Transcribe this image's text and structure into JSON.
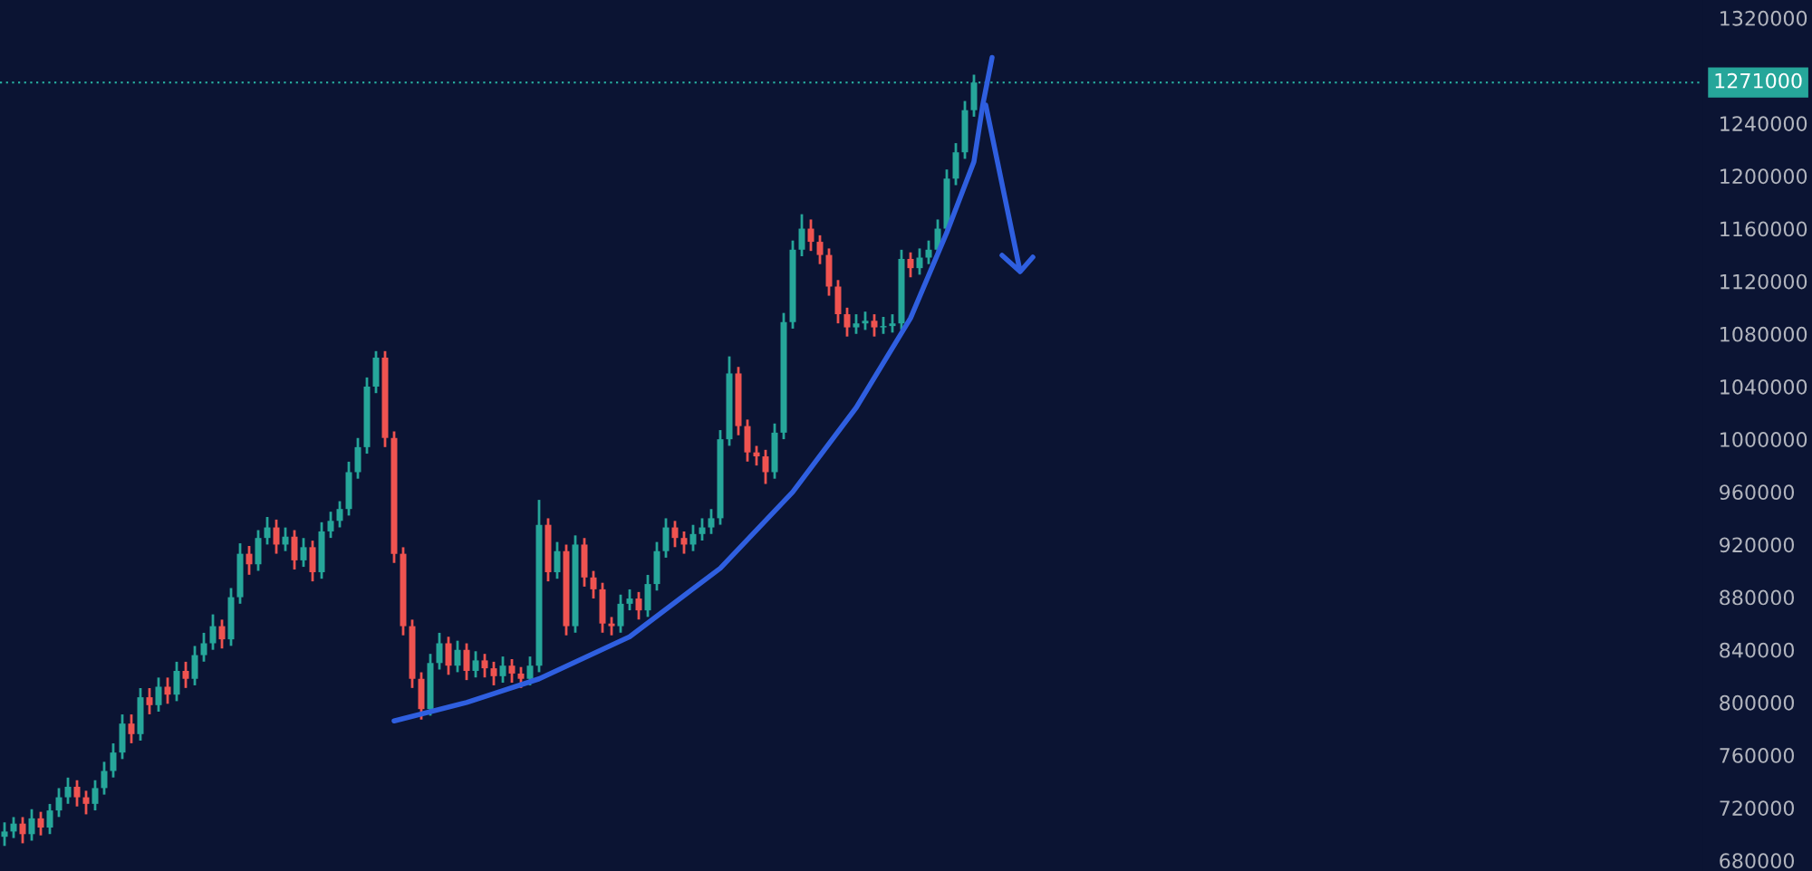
{
  "chart_data": {
    "type": "candlestick",
    "categories": [
      null,
      null,
      null,
      null,
      null,
      null,
      null,
      null,
      null,
      null,
      null,
      null,
      null,
      null,
      null,
      null,
      null,
      null,
      null,
      null,
      null,
      null,
      null,
      null,
      null,
      null,
      null,
      null,
      null,
      null,
      null,
      null,
      null,
      null,
      null,
      null,
      null,
      null,
      null,
      null,
      null,
      null,
      null,
      null,
      null,
      null,
      null,
      null,
      null,
      null,
      null,
      null,
      null,
      null,
      null,
      null,
      null,
      null,
      null,
      null,
      null,
      null,
      null,
      null,
      null,
      null,
      null,
      null,
      null,
      null,
      null,
      null,
      null,
      null,
      null,
      null,
      null,
      null,
      null,
      null,
      null,
      null,
      null,
      null,
      null,
      null,
      null,
      null,
      null,
      null,
      null,
      null,
      null,
      null,
      null,
      null,
      null,
      null,
      null,
      null,
      null,
      null,
      null,
      null,
      null,
      null,
      null,
      null,
      null,
      null,
      null,
      null,
      null,
      null,
      null,
      null,
      null,
      null,
      null,
      null,
      null,
      null,
      null,
      null,
      null,
      null,
      null,
      null,
      null,
      null,
      null,
      null,
      null,
      null,
      null,
      null,
      null,
      null,
      null,
      null,
      null,
      null,
      null,
      null,
      null,
      null,
      null,
      null,
      null,
      null,
      null,
      null,
      null,
      null,
      null,
      null,
      null,
      null,
      null,
      null,
      null,
      null,
      null,
      null,
      null,
      null,
      null,
      null,
      null,
      null,
      null,
      null,
      null,
      null,
      null,
      null,
      null,
      null,
      null,
      null,
      null,
      null,
      null,
      null,
      null,
      null,
      null,
      null
    ],
    "ohlc": [
      [
        698000,
        708000,
        692000,
        702000
      ],
      [
        702000,
        712000,
        698000,
        708000
      ],
      [
        708000,
        712000,
        694000,
        700000
      ],
      [
        700000,
        718000,
        696000,
        712000
      ],
      [
        712000,
        716000,
        700000,
        705000
      ],
      [
        705000,
        722000,
        701000,
        718000
      ],
      [
        718000,
        734000,
        714000,
        728000
      ],
      [
        728000,
        742000,
        724000,
        736000
      ],
      [
        736000,
        740000,
        722000,
        728000
      ],
      [
        728000,
        732000,
        716000,
        723000
      ],
      [
        723000,
        740000,
        719000,
        735000
      ],
      [
        735000,
        754000,
        731000,
        748000
      ],
      [
        748000,
        768000,
        744000,
        762000
      ],
      [
        762000,
        790000,
        758000,
        784000
      ],
      [
        784000,
        790000,
        770000,
        776000
      ],
      [
        776000,
        810000,
        772000,
        804000
      ],
      [
        804000,
        810000,
        792000,
        798000
      ],
      [
        798000,
        818000,
        794000,
        812000
      ],
      [
        812000,
        818000,
        800000,
        806000
      ],
      [
        806000,
        830000,
        802000,
        824000
      ],
      [
        824000,
        830000,
        812000,
        818000
      ],
      [
        818000,
        842000,
        814000,
        836000
      ],
      [
        836000,
        852000,
        832000,
        845000
      ],
      [
        845000,
        866000,
        841000,
        858000
      ],
      [
        858000,
        862000,
        842000,
        848000
      ],
      [
        848000,
        886000,
        844000,
        880000
      ],
      [
        880000,
        920000,
        876000,
        913000
      ],
      [
        913000,
        918000,
        898000,
        905000
      ],
      [
        905000,
        930000,
        901000,
        925000
      ],
      [
        925000,
        940000,
        921000,
        933000
      ],
      [
        933000,
        938000,
        914000,
        920000
      ],
      [
        920000,
        932000,
        916000,
        926000
      ],
      [
        926000,
        930000,
        902000,
        908000
      ],
      [
        908000,
        924000,
        904000,
        918000
      ],
      [
        918000,
        922000,
        893000,
        899000
      ],
      [
        899000,
        936000,
        895000,
        930000
      ],
      [
        930000,
        944000,
        926000,
        938000
      ],
      [
        938000,
        952000,
        934000,
        947000
      ],
      [
        947000,
        982000,
        943000,
        975000
      ],
      [
        975000,
        1000000,
        971000,
        994000
      ],
      [
        994000,
        1046000,
        990000,
        1040000
      ],
      [
        1040000,
        1066000,
        1036000,
        1062000
      ],
      [
        1062000,
        1066000,
        995000,
        1001000
      ],
      [
        1001000,
        1005000,
        907000,
        913000
      ],
      [
        913000,
        917000,
        852000,
        858000
      ],
      [
        858000,
        862000,
        812000,
        818000
      ],
      [
        818000,
        822000,
        788000,
        795000
      ],
      [
        795000,
        836000,
        791000,
        830000
      ],
      [
        830000,
        852000,
        826000,
        845000
      ],
      [
        845000,
        849000,
        822000,
        828000
      ],
      [
        828000,
        846000,
        824000,
        840000
      ],
      [
        840000,
        844000,
        818000,
        824000
      ],
      [
        824000,
        838000,
        820000,
        832000
      ],
      [
        832000,
        836000,
        820000,
        826000
      ],
      [
        826000,
        830000,
        814000,
        820000
      ],
      [
        820000,
        834000,
        816000,
        828000
      ],
      [
        828000,
        832000,
        816000,
        822000
      ],
      [
        822000,
        826000,
        812000,
        818000
      ],
      [
        818000,
        834000,
        814000,
        828000
      ],
      [
        828000,
        953000,
        824000,
        935000
      ],
      [
        935000,
        939000,
        893000,
        899000
      ],
      [
        899000,
        921000,
        895000,
        915000
      ],
      [
        915000,
        919000,
        852000,
        858000
      ],
      [
        858000,
        926000,
        854000,
        920000
      ],
      [
        920000,
        924000,
        889000,
        895000
      ],
      [
        895000,
        899000,
        880000,
        886000
      ],
      [
        886000,
        890000,
        854000,
        860000
      ],
      [
        860000,
        864000,
        852000,
        858000
      ],
      [
        858000,
        881000,
        854000,
        875000
      ],
      [
        875000,
        885000,
        871000,
        879000
      ],
      [
        879000,
        883000,
        864000,
        870000
      ],
      [
        870000,
        896000,
        866000,
        890000
      ],
      [
        890000,
        921000,
        886000,
        915000
      ],
      [
        915000,
        939000,
        911000,
        933000
      ],
      [
        933000,
        937000,
        919000,
        925000
      ],
      [
        925000,
        929000,
        914000,
        920000
      ],
      [
        920000,
        934000,
        916000,
        928000
      ],
      [
        928000,
        939000,
        924000,
        933000
      ],
      [
        933000,
        946000,
        929000,
        940000
      ],
      [
        940000,
        1006000,
        936000,
        1000000
      ],
      [
        1000000,
        1062000,
        996000,
        1050000
      ],
      [
        1050000,
        1054000,
        1004000,
        1010000
      ],
      [
        1010000,
        1014000,
        984000,
        990000
      ],
      [
        990000,
        994000,
        981000,
        987000
      ],
      [
        987000,
        991000,
        967000,
        975000
      ],
      [
        975000,
        1011000,
        971000,
        1005000
      ],
      [
        1005000,
        1095000,
        1001000,
        1089000
      ],
      [
        1089000,
        1150000,
        1085000,
        1144000
      ],
      [
        1144000,
        1170000,
        1140000,
        1160000
      ],
      [
        1160000,
        1166000,
        1144000,
        1150000
      ],
      [
        1150000,
        1154000,
        1134000,
        1140000
      ],
      [
        1140000,
        1144000,
        1110000,
        1116000
      ],
      [
        1116000,
        1120000,
        1089000,
        1095000
      ],
      [
        1095000,
        1099000,
        1079000,
        1085000
      ],
      [
        1085000,
        1094000,
        1081000,
        1088000
      ],
      [
        1088000,
        1096000,
        1084000,
        1090000
      ],
      [
        1090000,
        1094000,
        1079000,
        1085000
      ],
      [
        1085000,
        1092000,
        1081000,
        1086000
      ],
      [
        1086000,
        1094000,
        1082000,
        1088000
      ],
      [
        1088000,
        1143000,
        1084000,
        1137000
      ],
      [
        1137000,
        1141000,
        1124000,
        1130000
      ],
      [
        1130000,
        1144000,
        1126000,
        1138000
      ],
      [
        1138000,
        1150000,
        1134000,
        1144000
      ],
      [
        1144000,
        1166000,
        1140000,
        1160000
      ],
      [
        1160000,
        1204000,
        1156000,
        1198000
      ],
      [
        1198000,
        1224000,
        1194000,
        1218000
      ],
      [
        1218000,
        1256000,
        1214000,
        1250000
      ],
      [
        1250000,
        1276000,
        1246000,
        1271000
      ],
      null,
      null,
      null,
      null,
      null,
      null,
      null,
      null,
      null,
      null,
      null,
      null,
      null,
      null,
      null,
      null,
      null,
      null,
      null,
      null,
      null,
      null,
      null,
      null,
      null,
      null,
      null,
      null,
      null,
      null,
      null,
      null,
      null,
      null,
      null,
      null,
      null,
      null,
      null,
      null,
      null,
      null,
      null,
      null,
      null,
      null,
      null,
      null,
      null,
      null,
      null,
      null,
      null,
      null,
      null,
      null,
      null,
      null,
      null,
      null,
      null,
      null,
      null,
      null,
      null,
      null,
      null,
      null,
      null,
      null,
      null,
      null,
      null,
      null,
      null,
      null,
      null,
      null,
      null,
      null
    ],
    "ylim": [
      672000,
      1333700
    ],
    "yticks": [
      680000,
      720000,
      760000,
      800000,
      840000,
      880000,
      920000,
      960000,
      1000000,
      1040000,
      1080000,
      1120000,
      1160000,
      1200000,
      1240000,
      1320000
    ],
    "ref_lines": [
      {
        "axis": "y",
        "value": 1271000,
        "label": "1271000",
        "color": "#26a69a",
        "line_style": "dotted"
      }
    ],
    "series": [
      {
        "type": "line",
        "color": "#2f5fe0",
        "values": [
          null,
          null,
          null,
          null,
          null,
          null,
          null,
          null,
          null,
          null,
          null,
          null,
          null,
          null,
          null,
          null,
          null,
          null,
          null,
          null,
          null,
          null,
          null,
          null,
          null,
          null,
          null,
          null,
          null,
          null,
          null,
          null,
          null,
          null,
          null,
          null,
          null,
          null,
          null,
          null,
          null,
          null,
          null,
          786000,
          null,
          null,
          null,
          null,
          null,
          null,
          null,
          800000,
          null,
          null,
          null,
          null,
          null,
          null,
          null,
          818000,
          null,
          null,
          null,
          null,
          null,
          null,
          null,
          null,
          null,
          850000,
          null,
          null,
          null,
          null,
          null,
          null,
          null,
          null,
          null,
          902000,
          null,
          null,
          null,
          null,
          null,
          null,
          null,
          960000,
          null,
          null,
          null,
          null,
          null,
          null,
          1024000,
          null,
          null,
          null,
          null,
          null,
          1092000,
          null,
          null,
          null,
          1157000,
          null,
          null,
          1211000,
          1255000,
          1290000,
          null,
          null,
          null,
          null,
          null,
          null,
          null,
          null,
          null,
          null,
          null,
          null,
          null,
          null,
          null,
          null,
          null,
          null,
          null,
          null,
          null,
          null,
          null,
          null,
          null,
          null,
          null,
          null,
          null,
          null,
          null,
          null,
          null,
          null,
          null,
          null,
          null,
          null,
          null,
          null,
          null,
          null,
          null,
          null,
          null,
          null,
          null,
          null,
          null,
          null,
          null,
          null,
          null,
          null,
          null,
          null,
          null,
          null,
          null,
          null,
          null,
          null,
          null,
          null,
          null,
          null,
          null,
          null,
          null,
          null,
          null,
          null,
          null,
          null,
          null,
          null,
          null,
          null
        ]
      }
    ],
    "grid": false
  }
}
